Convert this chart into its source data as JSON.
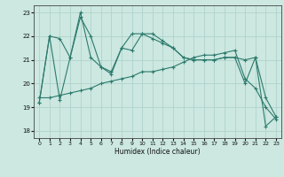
{
  "xlabel": "Humidex (Indice chaleur)",
  "background_color": "#cce8e0",
  "grid_color": "#aacfc8",
  "line_color": "#2d7a6e",
  "x_ticks": [
    0,
    1,
    2,
    3,
    4,
    5,
    6,
    7,
    8,
    9,
    10,
    11,
    12,
    13,
    14,
    15,
    16,
    17,
    18,
    19,
    20,
    21,
    22,
    23
  ],
  "ylim": [
    17.7,
    23.3
  ],
  "xlim": [
    -0.5,
    23.5
  ],
  "y_ticks": [
    18,
    19,
    20,
    21,
    22,
    23
  ],
  "series1_x": [
    0,
    1,
    2,
    3,
    4,
    5,
    6,
    7,
    8,
    9,
    10,
    11,
    12,
    13,
    14,
    15,
    16,
    17,
    18,
    19,
    20,
    21,
    22,
    23
  ],
  "series1_y": [
    19.2,
    22.0,
    21.9,
    21.1,
    22.8,
    22.0,
    20.7,
    20.4,
    21.5,
    22.1,
    22.1,
    21.9,
    21.7,
    21.5,
    21.1,
    21.0,
    21.0,
    21.0,
    21.1,
    21.1,
    21.0,
    21.1,
    19.4,
    18.6
  ],
  "series2_x": [
    0,
    1,
    2,
    3,
    4,
    5,
    6,
    7,
    8,
    9,
    10,
    11,
    12,
    13,
    14,
    15,
    16,
    17,
    18,
    19,
    20,
    21,
    22,
    23
  ],
  "series2_y": [
    19.2,
    22.0,
    19.3,
    21.1,
    23.0,
    21.1,
    20.7,
    20.5,
    21.5,
    21.4,
    22.1,
    22.1,
    21.8,
    21.5,
    21.1,
    21.0,
    21.0,
    21.0,
    21.1,
    21.1,
    20.0,
    21.1,
    18.2,
    18.6
  ],
  "series3_x": [
    0,
    1,
    2,
    3,
    4,
    5,
    6,
    7,
    8,
    9,
    10,
    11,
    12,
    13,
    14,
    15,
    16,
    17,
    18,
    19,
    20,
    21,
    22,
    23
  ],
  "series3_y": [
    19.4,
    19.4,
    19.5,
    19.6,
    19.7,
    19.8,
    20.0,
    20.1,
    20.2,
    20.3,
    20.5,
    20.5,
    20.6,
    20.7,
    20.9,
    21.1,
    21.2,
    21.2,
    21.3,
    21.4,
    20.2,
    19.8,
    19.0,
    18.5
  ]
}
